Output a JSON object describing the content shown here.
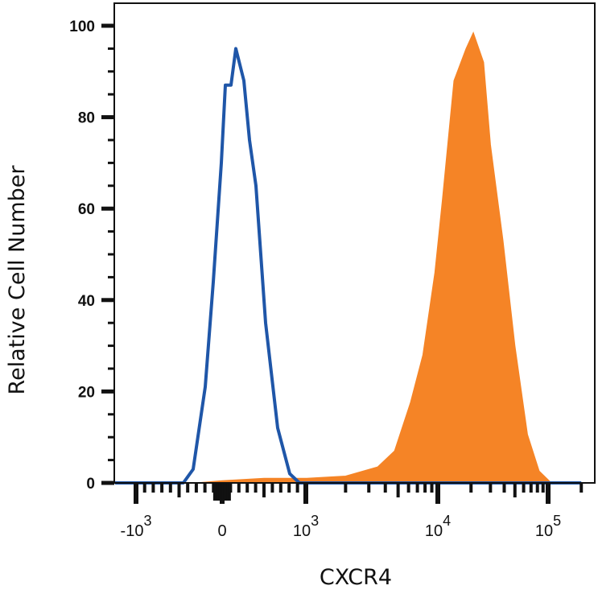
{
  "chart_data": {
    "type": "area",
    "title": "",
    "xlabel": "CXCR4",
    "ylabel": "Relative Cell Number",
    "x_scale": "biexponential",
    "ylim": [
      0,
      105
    ],
    "y_ticks": [
      0,
      20,
      40,
      60,
      80,
      100
    ],
    "y_tick_labels": [
      "0",
      "20",
      "40",
      "60",
      "80",
      "100"
    ],
    "x_ticks": [
      {
        "value": -1000,
        "base": "-10",
        "exp": "3"
      },
      {
        "value": 0,
        "base": "0",
        "exp": ""
      },
      {
        "value": 1000,
        "base": "10",
        "exp": "3"
      },
      {
        "value": 10000,
        "base": "10",
        "exp": "4"
      },
      {
        "value": 100000,
        "base": "10",
        "exp": "5"
      }
    ],
    "grid": false,
    "series": [
      {
        "style": "outline",
        "color": "#1f56a8",
        "x": [
          -450,
          -336,
          -196,
          -103,
          -9,
          38,
          106,
          163,
          260,
          327,
          404,
          519,
          663,
          808,
          923,
          200000
        ],
        "y": [
          0,
          3,
          21,
          44,
          70,
          87,
          87,
          95,
          88,
          75,
          65,
          35,
          12,
          2,
          0,
          0
        ]
      },
      {
        "style": "filled",
        "color": "#f58426",
        "x": [
          -300,
          0,
          500,
          1000,
          2000,
          3500,
          4700,
          6200,
          7700,
          9500,
          11000,
          14000,
          18000,
          21000,
          26000,
          30000,
          39000,
          50000,
          65000,
          83000,
          107000
        ],
        "y": [
          0,
          0.5,
          1,
          1,
          1.5,
          3.5,
          7,
          17.6,
          28,
          46,
          62,
          88,
          95,
          98.5,
          92,
          74,
          53,
          30,
          10.6,
          2.6,
          0
        ]
      }
    ]
  }
}
